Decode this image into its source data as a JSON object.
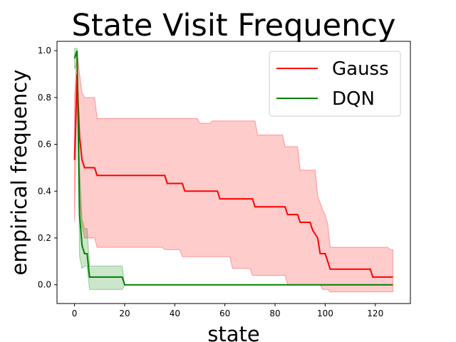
{
  "chart_data": {
    "type": "line",
    "title": "State Visit Frequency",
    "xlabel": "state",
    "ylabel": "empirical frequency",
    "xlim": [
      -7,
      134
    ],
    "ylim": [
      -0.08,
      1.04
    ],
    "xticks": [
      0,
      20,
      40,
      60,
      80,
      100,
      120
    ],
    "yticks": [
      0.0,
      0.2,
      0.4,
      0.6,
      0.8,
      1.0
    ],
    "xtick_labels": [
      "0",
      "20",
      "40",
      "60",
      "80",
      "100",
      "120"
    ],
    "ytick_labels": [
      "0.0",
      "0.2",
      "0.4",
      "0.6",
      "0.8",
      "1.0"
    ],
    "grid": false,
    "legend_position": "top-right",
    "series": [
      {
        "name": "Gauss",
        "color": "#ff0000",
        "band_color": "#ff0000",
        "band_opacity": 0.2,
        "points": [
          [
            0,
            0.533
          ],
          [
            1,
            0.9
          ],
          [
            2,
            0.633
          ],
          [
            3,
            0.533
          ],
          [
            4,
            0.5
          ],
          [
            8,
            0.5
          ],
          [
            9,
            0.467
          ],
          [
            36,
            0.467
          ],
          [
            37,
            0.433
          ],
          [
            43,
            0.433
          ],
          [
            44,
            0.4
          ],
          [
            57,
            0.4
          ],
          [
            58,
            0.367
          ],
          [
            64,
            0.367
          ],
          [
            65,
            0.367
          ],
          [
            71,
            0.367
          ],
          [
            72,
            0.333
          ],
          [
            84,
            0.333
          ],
          [
            85,
            0.3
          ],
          [
            89,
            0.3
          ],
          [
            90,
            0.267
          ],
          [
            94,
            0.267
          ],
          [
            95,
            0.233
          ],
          [
            97,
            0.2
          ],
          [
            98,
            0.133
          ],
          [
            100,
            0.133
          ],
          [
            101,
            0.1
          ],
          [
            102,
            0.067
          ],
          [
            118,
            0.067
          ],
          [
            119,
            0.033
          ],
          [
            127,
            0.033
          ]
        ],
        "upper": [
          [
            0,
            0.8
          ],
          [
            1,
            1.0
          ],
          [
            2,
            0.9
          ],
          [
            3,
            0.82
          ],
          [
            4,
            0.8
          ],
          [
            8,
            0.8
          ],
          [
            9,
            0.71
          ],
          [
            49,
            0.71
          ],
          [
            50,
            0.69
          ],
          [
            54,
            0.69
          ],
          [
            55,
            0.7
          ],
          [
            62,
            0.7
          ],
          [
            63,
            0.7
          ],
          [
            72,
            0.7
          ],
          [
            73,
            0.64
          ],
          [
            83,
            0.64
          ],
          [
            84,
            0.59
          ],
          [
            89,
            0.59
          ],
          [
            90,
            0.49
          ],
          [
            96,
            0.49
          ],
          [
            97,
            0.38
          ],
          [
            99,
            0.32
          ],
          [
            100,
            0.3
          ],
          [
            101,
            0.26
          ],
          [
            102,
            0.16
          ],
          [
            125,
            0.16
          ],
          [
            126,
            0.15
          ],
          [
            127,
            0.15
          ]
        ],
        "lower": [
          [
            0,
            0.27
          ],
          [
            1,
            0.8
          ],
          [
            2,
            0.37
          ],
          [
            3,
            0.25
          ],
          [
            4,
            0.2
          ],
          [
            8,
            0.2
          ],
          [
            9,
            0.16
          ],
          [
            35,
            0.16
          ],
          [
            36,
            0.15
          ],
          [
            42,
            0.15
          ],
          [
            43,
            0.12
          ],
          [
            62,
            0.12
          ],
          [
            63,
            0.07
          ],
          [
            70,
            0.07
          ],
          [
            71,
            0.04
          ],
          [
            84,
            0.04
          ],
          [
            85,
            0.0
          ],
          [
            98,
            0.0
          ],
          [
            99,
            -0.02
          ],
          [
            101,
            -0.02
          ],
          [
            102,
            -0.03
          ],
          [
            127,
            -0.03
          ]
        ]
      },
      {
        "name": "DQN",
        "color": "#008000",
        "band_color": "#008000",
        "band_opacity": 0.2,
        "points": [
          [
            0,
            0.967
          ],
          [
            1,
            1.0
          ],
          [
            2,
            0.3
          ],
          [
            3,
            0.167
          ],
          [
            4,
            0.133
          ],
          [
            5,
            0.133
          ],
          [
            6,
            0.033
          ],
          [
            19,
            0.033
          ],
          [
            20,
            0.0
          ],
          [
            127,
            0.0
          ]
        ],
        "upper": [
          [
            0,
            1.01
          ],
          [
            1,
            1.01
          ],
          [
            2,
            0.5
          ],
          [
            3,
            0.28
          ],
          [
            4,
            0.24
          ],
          [
            5,
            0.24
          ],
          [
            6,
            0.08
          ],
          [
            19,
            0.08
          ],
          [
            20,
            0.0
          ],
          [
            127,
            0.0
          ]
        ],
        "lower": [
          [
            0,
            0.92
          ],
          [
            1,
            0.95
          ],
          [
            2,
            0.12
          ],
          [
            3,
            0.07
          ],
          [
            4,
            0.08
          ],
          [
            5,
            0.08
          ],
          [
            6,
            -0.02
          ],
          [
            19,
            -0.02
          ],
          [
            20,
            0.0
          ],
          [
            127,
            0.0
          ]
        ]
      }
    ]
  }
}
